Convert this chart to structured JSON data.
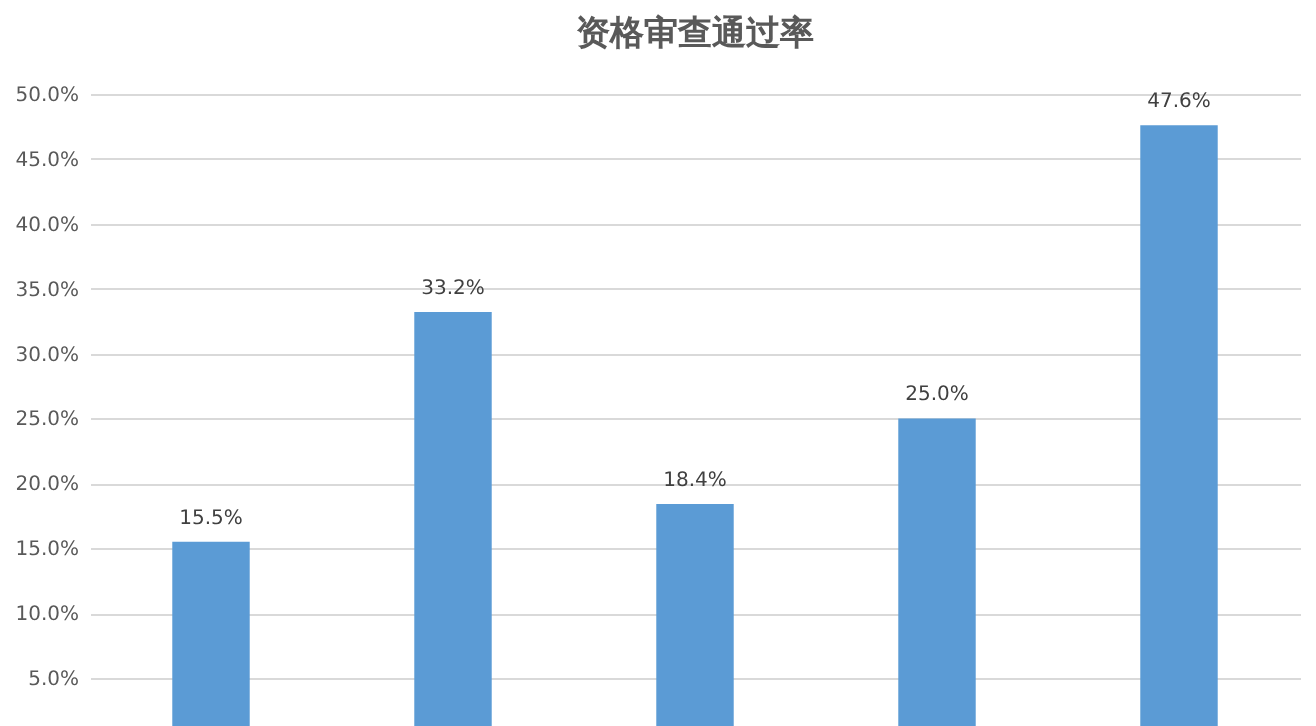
{
  "chart_data": {
    "type": "bar",
    "title": "资格审查通过率",
    "categories": [
      null,
      null,
      null,
      null,
      null
    ],
    "values": [
      15.5,
      33.2,
      18.4,
      25.0,
      47.6
    ],
    "value_labels": [
      "15.5%",
      "33.2%",
      "18.4%",
      "25.0%",
      "47.6%"
    ],
    "color": "#5b9bd5",
    "ylim": [
      1.3,
      50
    ],
    "yticks": [
      {
        "value": 5,
        "label": "5.0%"
      },
      {
        "value": 10,
        "label": "10.0%"
      },
      {
        "value": 15,
        "label": "15.0%"
      },
      {
        "value": 20,
        "label": "20.0%"
      },
      {
        "value": 25,
        "label": "25.0%"
      },
      {
        "value": 30,
        "label": "30.0%"
      },
      {
        "value": 35,
        "label": "35.0%"
      },
      {
        "value": 40,
        "label": "40.0%"
      },
      {
        "value": 45,
        "label": "45.0%"
      },
      {
        "value": 50,
        "label": "50.0%"
      }
    ],
    "grid": "y",
    "tick_labels": "y"
  }
}
